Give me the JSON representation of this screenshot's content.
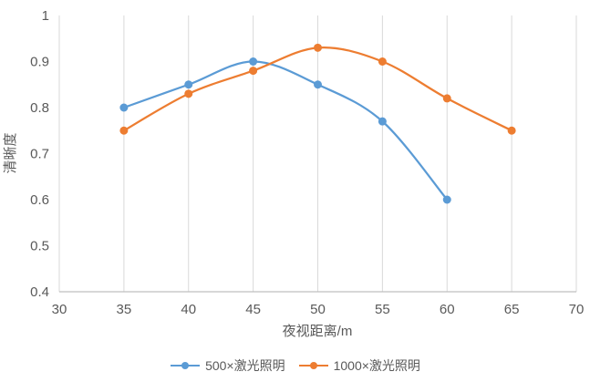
{
  "chart_data": {
    "type": "line",
    "title": "",
    "xlabel": "夜视距离/m",
    "ylabel": "清晰度",
    "xlim": [
      30,
      70
    ],
    "ylim": [
      0.4,
      1
    ],
    "xticks": [
      30,
      35,
      40,
      45,
      50,
      55,
      60,
      65,
      70
    ],
    "yticks": [
      0.4,
      0.5,
      0.6,
      0.7,
      0.8,
      0.9,
      1
    ],
    "grid": "vertical-only",
    "legend_position": "bottom",
    "smooth_lines": true,
    "marker": "circle",
    "series": [
      {
        "name": "500×激光照明",
        "color": "#5B9BD5",
        "x": [
          35,
          40,
          45,
          50,
          55,
          60
        ],
        "values": [
          0.8,
          0.85,
          0.9,
          0.85,
          0.77,
          0.6
        ]
      },
      {
        "name": "1000×激光照明",
        "color": "#ED7D31",
        "x": [
          35,
          40,
          45,
          50,
          55,
          60,
          65
        ],
        "values": [
          0.75,
          0.83,
          0.88,
          0.93,
          0.9,
          0.82,
          0.75
        ]
      }
    ],
    "colors": {
      "gridline": "#D9D9D9",
      "axis_line": "#BFBFBF",
      "text": "#595959"
    }
  }
}
